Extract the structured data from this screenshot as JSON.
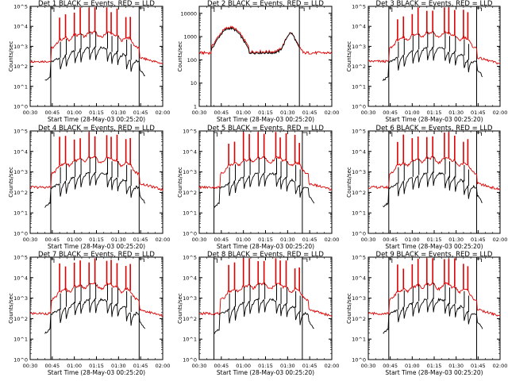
{
  "chart_data": [
    {
      "type": "line",
      "title": "Det 1  BLACK = Events, RED = LLD",
      "xlabel": "Start Time (28-May-03 00:25:20)",
      "ylabel": "Counts/sec",
      "xticks": [
        "00:30",
        "00:45",
        "01:00",
        "01:15",
        "01:30",
        "01:45",
        "02:00"
      ],
      "yticks": [
        "10^0",
        "10^1",
        "10^2",
        "10^3",
        "10^4",
        "10^5"
      ],
      "yscale": "log",
      "ylim": [
        1,
        100000
      ],
      "xlim_minutes": [
        30,
        120
      ],
      "markers": [
        44,
        104
      ],
      "flares": [
        50,
        54,
        60,
        64,
        70,
        74,
        82,
        85,
        89,
        95,
        98
      ]
    },
    {
      "type": "line",
      "title": "Det 2  BLACK = Events, RED = LLD",
      "xlabel": "Start Time (28-May-03 00:25:20)",
      "ylabel": "Counts/sec",
      "xticks": [
        "00:30",
        "00:45",
        "01:00",
        "01:15",
        "01:30",
        "01:45",
        "02:00"
      ],
      "yticks": [
        "1",
        "10",
        "100",
        "1000",
        "10000"
      ],
      "yscale": "log",
      "ylim": [
        1,
        20000
      ],
      "xlim_minutes": [
        30,
        120
      ],
      "markers": [
        38,
        98
      ],
      "flares": []
    },
    {
      "type": "line",
      "title": "Det 3  BLACK = Events, RED = LLD",
      "xlabel": "Start Time (28-May-03 00:25:20)",
      "ylabel": "Counts/sec",
      "xticks": [
        "00:30",
        "00:45",
        "01:00",
        "01:15",
        "01:30",
        "01:45",
        "02:00"
      ],
      "yticks": [
        "10^0",
        "10^1",
        "10^2",
        "10^3",
        "10^4",
        "10^5"
      ],
      "yscale": "log",
      "ylim": [
        1,
        100000
      ],
      "xlim_minutes": [
        30,
        120
      ],
      "markers": [
        44,
        104
      ],
      "flares": [
        50,
        54,
        60,
        64,
        70,
        74,
        82,
        85,
        89,
        95,
        98
      ]
    },
    {
      "type": "line",
      "title": "Det 4  BLACK = Events, RED = LLD",
      "xlabel": "Start Time (28-May-03 00:25:20)",
      "ylabel": "Counts/sec",
      "xticks": [
        "00:30",
        "00:45",
        "01:00",
        "01:15",
        "01:30",
        "01:45",
        "02:00"
      ],
      "yticks": [
        "10^0",
        "10^1",
        "10^2",
        "10^3",
        "10^4",
        "10^5"
      ],
      "yscale": "log",
      "ylim": [
        1,
        100000
      ],
      "xlim_minutes": [
        30,
        120
      ],
      "markers": [
        44,
        104
      ],
      "flares": [
        50,
        54,
        60,
        64,
        70,
        74,
        82,
        85,
        89,
        95,
        98
      ]
    },
    {
      "type": "line",
      "title": "Det 5  BLACK = Events, RED = LLD",
      "xlabel": "Start Time (28-May-03 00:25:20)",
      "ylabel": "Counts/sec",
      "xticks": [
        "00:30",
        "00:45",
        "01:00",
        "01:15",
        "01:30",
        "01:45",
        "02:00"
      ],
      "yticks": [
        "10^0",
        "10^1",
        "10^2",
        "10^3",
        "10^4",
        "10^5"
      ],
      "yscale": "log",
      "ylim": [
        1,
        100000
      ],
      "xlim_minutes": [
        30,
        120
      ],
      "markers": [
        40,
        100
      ],
      "flares": [
        50,
        54,
        60,
        64,
        70,
        74,
        82,
        85,
        89,
        95,
        98
      ]
    },
    {
      "type": "line",
      "title": "Det 6  BLACK = Events, RED = LLD",
      "xlabel": "Start Time (28-May-03 00:25:20)",
      "ylabel": "Counts/sec",
      "xticks": [
        "00:30",
        "00:45",
        "01:00",
        "01:15",
        "01:30",
        "01:45",
        "02:00"
      ],
      "yticks": [
        "10^0",
        "10^1",
        "10^2",
        "10^3",
        "10^4",
        "10^5"
      ],
      "yscale": "log",
      "ylim": [
        1,
        100000
      ],
      "xlim_minutes": [
        30,
        120
      ],
      "markers": [
        44,
        104
      ],
      "flares": [
        50,
        54,
        60,
        64,
        70,
        74,
        82,
        85,
        89,
        95,
        98
      ]
    },
    {
      "type": "line",
      "title": "Det 7  BLACK = Events, RED = LLD",
      "xlabel": "Start Time (28-May-03 00:25:20)",
      "ylabel": "Counts/sec",
      "xticks": [
        "00:30",
        "00:45",
        "01:00",
        "01:15",
        "01:30",
        "01:45",
        "02:00"
      ],
      "yticks": [
        "10^0",
        "10^1",
        "10^2",
        "10^3",
        "10^4",
        "10^5"
      ],
      "yscale": "log",
      "ylim": [
        1,
        100000
      ],
      "xlim_minutes": [
        30,
        120
      ],
      "markers": [
        44,
        104
      ],
      "flares": [
        50,
        54,
        60,
        64,
        70,
        74,
        82,
        85,
        89,
        95,
        98
      ]
    },
    {
      "type": "line",
      "title": "Det 8  BLACK = Events, RED = LLD",
      "xlabel": "Start Time (28-May-03 00:25:20)",
      "ylabel": "Counts/sec",
      "xticks": [
        "00:30",
        "00:45",
        "01:00",
        "01:15",
        "01:30",
        "01:45",
        "02:00"
      ],
      "yticks": [
        "10^0",
        "10^1",
        "10^2",
        "10^3",
        "10^4",
        "10^5"
      ],
      "yscale": "log",
      "ylim": [
        1,
        100000
      ],
      "xlim_minutes": [
        30,
        120
      ],
      "markers": [
        40,
        100
      ],
      "flares": [
        50,
        54,
        60,
        64,
        70,
        74,
        82,
        85,
        89,
        95,
        98
      ]
    },
    {
      "type": "line",
      "title": "Det 9  BLACK = Events, RED = LLD",
      "xlabel": "Start Time (28-May-03 00:25:20)",
      "ylabel": "Counts/sec",
      "xticks": [
        "00:30",
        "00:45",
        "01:00",
        "01:15",
        "01:30",
        "01:45",
        "02:00"
      ],
      "yticks": [
        "10^0",
        "10^1",
        "10^2",
        "10^3",
        "10^4",
        "10^5"
      ],
      "yscale": "log",
      "ylim": [
        1,
        100000
      ],
      "xlim_minutes": [
        30,
        120
      ],
      "markers": [
        44,
        104
      ],
      "flares": [
        50,
        54,
        60,
        64,
        70,
        74,
        82,
        85,
        89,
        95,
        98
      ]
    }
  ],
  "colors": {
    "events": "#000000",
    "lld": "#dd0000"
  }
}
